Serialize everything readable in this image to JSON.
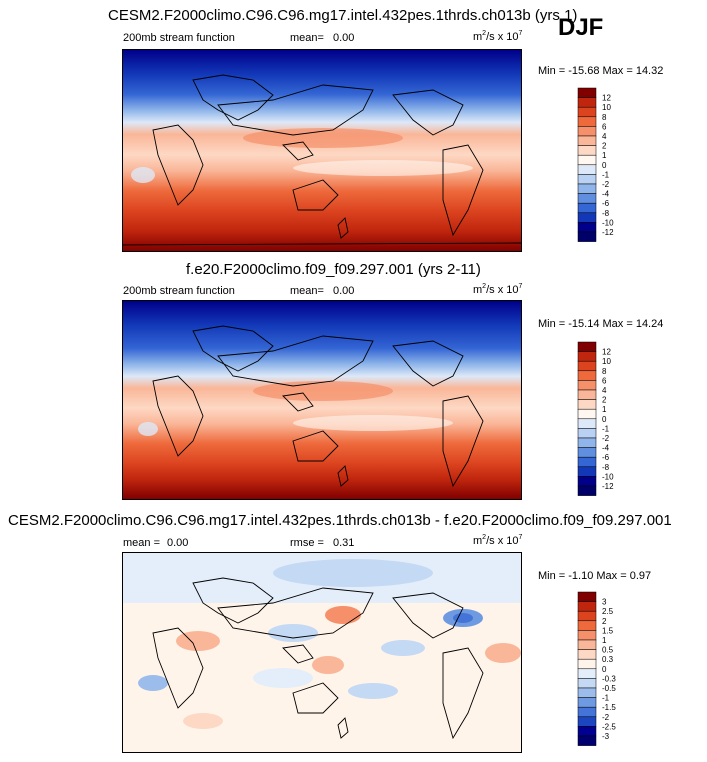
{
  "season": "DJF",
  "chart_data": [
    {
      "type": "heatmap",
      "title": "CESM2.F2000climo.C96.C96.mg17.intel.432pes.1thrds.ch013b (yrs 1)",
      "variable": "200mb stream function",
      "stat_label": "mean=",
      "stat_value": "0.00",
      "units": "m²/s x 10⁷",
      "units_base": "m",
      "units_mid": "/s x 10",
      "units_sup1": "2",
      "units_sup2": "7",
      "minmax": "Min = -15.68 Max =  14.32",
      "levels": [
        "12",
        "10",
        "8",
        "6",
        "4",
        "2",
        "1",
        "0",
        "-1",
        "-2",
        "-4",
        "-6",
        "-8",
        "-10",
        "-12"
      ],
      "colors": [
        "#800000",
        "#c0260d",
        "#dc4420",
        "#ee6a3c",
        "#f5906a",
        "#fab698",
        "#fdd8c4",
        "#fff7f0",
        "#dde8f8",
        "#b9d1f2",
        "#8fb5ea",
        "#5f8fde",
        "#3466d4",
        "#1238b8",
        "#00008a",
        "#00006b"
      ]
    },
    {
      "type": "heatmap",
      "title": "f.e20.F2000climo.f09_f09.297.001 (yrs 2-11)",
      "variable": "200mb stream function",
      "stat_label": "mean=",
      "stat_value": "0.00",
      "units": "m²/s x 10⁷",
      "units_base": "m",
      "units_mid": "/s x 10",
      "units_sup1": "2",
      "units_sup2": "7",
      "minmax": "Min = -15.14 Max =  14.24",
      "levels": [
        "12",
        "10",
        "8",
        "6",
        "4",
        "2",
        "1",
        "0",
        "-1",
        "-2",
        "-4",
        "-6",
        "-8",
        "-10",
        "-12"
      ],
      "colors": [
        "#800000",
        "#c0260d",
        "#dc4420",
        "#ee6a3c",
        "#f5906a",
        "#fab698",
        "#fdd8c4",
        "#fff7f0",
        "#dde8f8",
        "#b9d1f2",
        "#8fb5ea",
        "#5f8fde",
        "#3466d4",
        "#1238b8",
        "#00008a",
        "#00006b"
      ]
    },
    {
      "type": "heatmap",
      "title": "CESM2.F2000climo.C96.C96.mg17.intel.432pes.1thrds.ch013b - f.e20.F2000climo.f09_f09.297.001",
      "stat_label": "mean =",
      "stat_value": "0.00",
      "stat2_label": "rmse =",
      "stat2_value": "0.31",
      "units": "m²/s x 10⁷",
      "units_base": "m",
      "units_mid": "/s x 10",
      "units_sup1": "2",
      "units_sup2": "7",
      "minmax": "Min = -1.10 Max =  0.97",
      "levels": [
        "3",
        "2.5",
        "2",
        "1.5",
        "1",
        "0.5",
        "0.3",
        "0",
        "-0.3",
        "-0.5",
        "-1",
        "-1.5",
        "-2",
        "-2.5",
        "-3"
      ],
      "colors": [
        "#800000",
        "#c0260d",
        "#dc4420",
        "#ee6a3c",
        "#f5906a",
        "#fab698",
        "#fdd8c4",
        "#fff4ea",
        "#e3eefa",
        "#c4d9f4",
        "#9cbdec",
        "#6e9ae2",
        "#4474d8",
        "#1c46c0",
        "#000092",
        "#000070"
      ]
    }
  ]
}
